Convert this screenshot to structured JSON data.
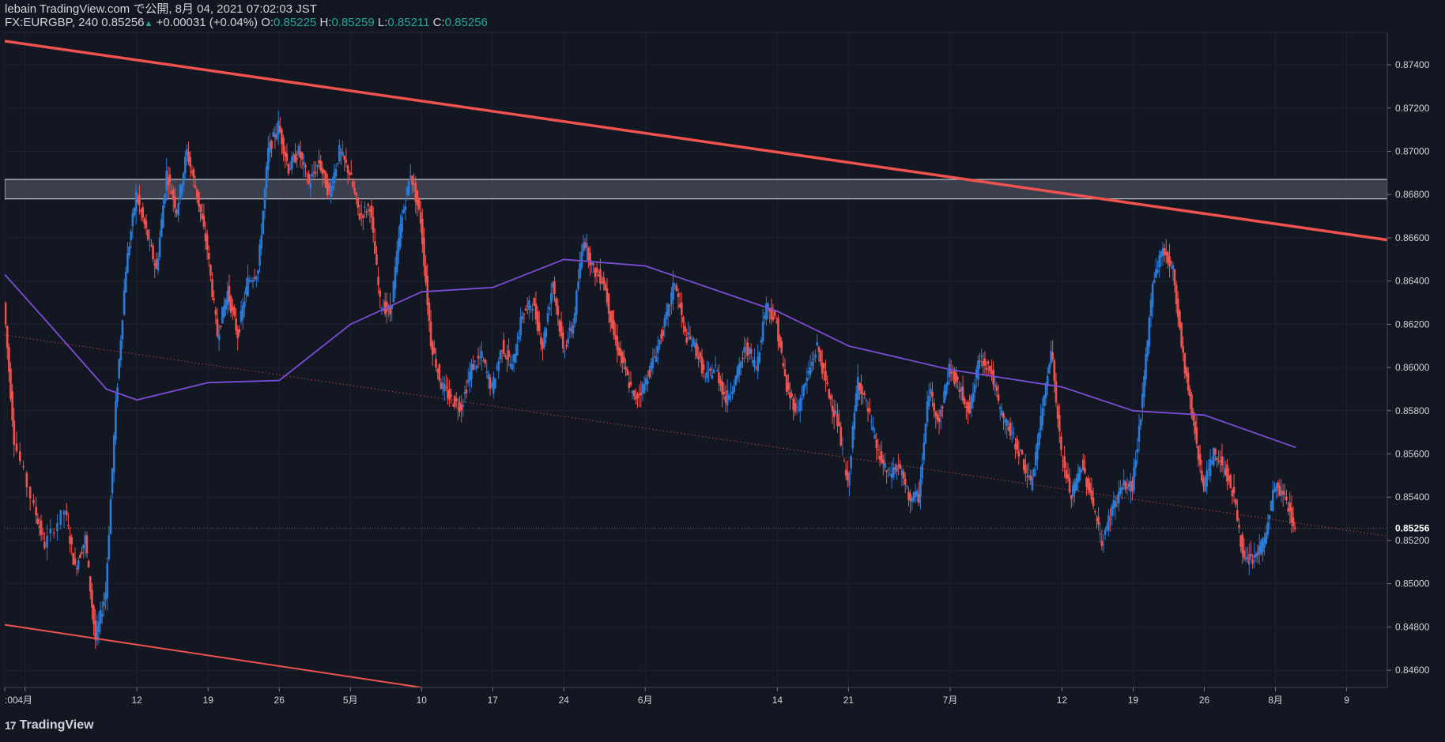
{
  "header": {
    "publisher": "lebain TradingView.com で公開, 8月 04, 2021 07:02:03 JST",
    "symbol": "FX:EURGBP, 240",
    "last": "0.85256",
    "change": "+0.00031 (+0.04%)",
    "o_label": "O:",
    "o_value": "0.85225",
    "h_label": "H:",
    "h_value": "0.85259",
    "l_label": "L:",
    "l_value": "0.85211",
    "c_label": "C:",
    "c_value": "0.85256"
  },
  "brand": {
    "icon": "tradingview-logo-icon",
    "text": "TradingView"
  },
  "colors": {
    "background": "#131722",
    "bull": "#2a7ad6",
    "bear": "#ef5350",
    "ma": "#7b4dd6",
    "trendline": "#f0524f",
    "zone_fill": "#4a4e5c",
    "grid": "#1e222d"
  },
  "chart_data": {
    "type": "candlestick",
    "symbol": "FX:EURGBP",
    "timeframe": "240",
    "price_axis": {
      "range": [
        0.8452,
        0.8755
      ],
      "ticks": [
        "0.84600",
        "0.84800",
        "0.85000",
        "0.85200",
        "0.85400",
        "0.85600",
        "0.85800",
        "0.86000",
        "0.86200",
        "0.86400",
        "0.86600",
        "0.86800",
        "0.87000",
        "0.87200",
        "0.87400"
      ],
      "last_price_label": "0.85256"
    },
    "time_axis": {
      "range": [
        "2021-03-30",
        "2021-08-13"
      ],
      "ticks": [
        {
          "label": ":00",
          "date": "2021-03-30"
        },
        {
          "label": "4月",
          "date": "2021-04-01"
        },
        {
          "label": "12",
          "date": "2021-04-12"
        },
        {
          "label": "19",
          "date": "2021-04-19"
        },
        {
          "label": "26",
          "date": "2021-04-26"
        },
        {
          "label": "5月",
          "date": "2021-05-03"
        },
        {
          "label": "10",
          "date": "2021-05-10"
        },
        {
          "label": "17",
          "date": "2021-05-17"
        },
        {
          "label": "24",
          "date": "2021-05-24"
        },
        {
          "label": "6月",
          "date": "2021-06-01"
        },
        {
          "label": "14",
          "date": "2021-06-14"
        },
        {
          "label": "21",
          "date": "2021-06-21"
        },
        {
          "label": "7月",
          "date": "2021-07-01"
        },
        {
          "label": "12",
          "date": "2021-07-12"
        },
        {
          "label": "19",
          "date": "2021-07-19"
        },
        {
          "label": "26",
          "date": "2021-07-26"
        },
        {
          "label": "8月",
          "date": "2021-08-02"
        },
        {
          "label": "9",
          "date": "2021-08-09"
        }
      ]
    },
    "close_path": [
      {
        "date": "2021-03-30",
        "price": 0.863
      },
      {
        "date": "2021-03-31",
        "price": 0.8567
      },
      {
        "date": "2021-04-02",
        "price": 0.8535
      },
      {
        "date": "2021-04-03",
        "price": 0.8518
      },
      {
        "date": "2021-04-05",
        "price": 0.8534
      },
      {
        "date": "2021-04-06",
        "price": 0.8507
      },
      {
        "date": "2021-04-07",
        "price": 0.8521
      },
      {
        "date": "2021-04-08",
        "price": 0.8474
      },
      {
        "date": "2021-04-09",
        "price": 0.8496
      },
      {
        "date": "2021-04-10",
        "price": 0.8582
      },
      {
        "date": "2021-04-11",
        "price": 0.8646
      },
      {
        "date": "2021-04-12",
        "price": 0.868
      },
      {
        "date": "2021-04-13",
        "price": 0.8663
      },
      {
        "date": "2021-04-14",
        "price": 0.8645
      },
      {
        "date": "2021-04-15",
        "price": 0.869
      },
      {
        "date": "2021-04-16",
        "price": 0.8673
      },
      {
        "date": "2021-04-17",
        "price": 0.87
      },
      {
        "date": "2021-04-18",
        "price": 0.868
      },
      {
        "date": "2021-04-19",
        "price": 0.8655
      },
      {
        "date": "2021-04-20",
        "price": 0.8615
      },
      {
        "date": "2021-04-21",
        "price": 0.8635
      },
      {
        "date": "2021-04-22",
        "price": 0.8615
      },
      {
        "date": "2021-04-23",
        "price": 0.864
      },
      {
        "date": "2021-04-24",
        "price": 0.8645
      },
      {
        "date": "2021-04-25",
        "price": 0.87
      },
      {
        "date": "2021-04-26",
        "price": 0.8712
      },
      {
        "date": "2021-04-27",
        "price": 0.8692
      },
      {
        "date": "2021-04-28",
        "price": 0.87
      },
      {
        "date": "2021-04-29",
        "price": 0.8685
      },
      {
        "date": "2021-04-30",
        "price": 0.8695
      },
      {
        "date": "2021-05-01",
        "price": 0.868
      },
      {
        "date": "2021-05-02",
        "price": 0.87
      },
      {
        "date": "2021-05-03",
        "price": 0.869
      },
      {
        "date": "2021-05-04",
        "price": 0.867
      },
      {
        "date": "2021-05-05",
        "price": 0.8675
      },
      {
        "date": "2021-05-06",
        "price": 0.863
      },
      {
        "date": "2021-05-07",
        "price": 0.8625
      },
      {
        "date": "2021-05-08",
        "price": 0.8665
      },
      {
        "date": "2021-05-09",
        "price": 0.869
      },
      {
        "date": "2021-05-10",
        "price": 0.8668
      },
      {
        "date": "2021-05-11",
        "price": 0.8612
      },
      {
        "date": "2021-05-12",
        "price": 0.8592
      },
      {
        "date": "2021-05-13",
        "price": 0.8585
      },
      {
        "date": "2021-05-14",
        "price": 0.8582
      },
      {
        "date": "2021-05-15",
        "price": 0.86
      },
      {
        "date": "2021-05-16",
        "price": 0.8605
      },
      {
        "date": "2021-05-17",
        "price": 0.859
      },
      {
        "date": "2021-05-18",
        "price": 0.861
      },
      {
        "date": "2021-05-19",
        "price": 0.86
      },
      {
        "date": "2021-05-20",
        "price": 0.8625
      },
      {
        "date": "2021-05-21",
        "price": 0.863
      },
      {
        "date": "2021-05-22",
        "price": 0.861
      },
      {
        "date": "2021-05-23",
        "price": 0.864
      },
      {
        "date": "2021-05-24",
        "price": 0.8608
      },
      {
        "date": "2021-05-25",
        "price": 0.862
      },
      {
        "date": "2021-05-26",
        "price": 0.866
      },
      {
        "date": "2021-05-27",
        "price": 0.8645
      },
      {
        "date": "2021-05-28",
        "price": 0.864
      },
      {
        "date": "2021-05-29",
        "price": 0.8615
      },
      {
        "date": "2021-05-30",
        "price": 0.86
      },
      {
        "date": "2021-05-31",
        "price": 0.8585
      },
      {
        "date": "2021-06-01",
        "price": 0.8592
      },
      {
        "date": "2021-06-02",
        "price": 0.8605
      },
      {
        "date": "2021-06-03",
        "price": 0.862
      },
      {
        "date": "2021-06-04",
        "price": 0.864
      },
      {
        "date": "2021-06-05",
        "price": 0.8615
      },
      {
        "date": "2021-06-06",
        "price": 0.861
      },
      {
        "date": "2021-06-07",
        "price": 0.8595
      },
      {
        "date": "2021-06-08",
        "price": 0.86
      },
      {
        "date": "2021-06-09",
        "price": 0.8585
      },
      {
        "date": "2021-06-10",
        "price": 0.8595
      },
      {
        "date": "2021-06-11",
        "price": 0.861
      },
      {
        "date": "2021-06-12",
        "price": 0.86
      },
      {
        "date": "2021-06-13",
        "price": 0.863
      },
      {
        "date": "2021-06-14",
        "price": 0.862
      },
      {
        "date": "2021-06-15",
        "price": 0.859
      },
      {
        "date": "2021-06-16",
        "price": 0.858
      },
      {
        "date": "2021-06-17",
        "price": 0.8595
      },
      {
        "date": "2021-06-18",
        "price": 0.861
      },
      {
        "date": "2021-06-19",
        "price": 0.859
      },
      {
        "date": "2021-06-20",
        "price": 0.8575
      },
      {
        "date": "2021-06-21",
        "price": 0.8545
      },
      {
        "date": "2021-06-22",
        "price": 0.8595
      },
      {
        "date": "2021-06-23",
        "price": 0.858
      },
      {
        "date": "2021-06-24",
        "price": 0.856
      },
      {
        "date": "2021-06-25",
        "price": 0.855
      },
      {
        "date": "2021-06-26",
        "price": 0.8555
      },
      {
        "date": "2021-06-27",
        "price": 0.854
      },
      {
        "date": "2021-06-28",
        "price": 0.854
      },
      {
        "date": "2021-06-29",
        "price": 0.859
      },
      {
        "date": "2021-06-30",
        "price": 0.8575
      },
      {
        "date": "2021-07-01",
        "price": 0.86
      },
      {
        "date": "2021-07-02",
        "price": 0.859
      },
      {
        "date": "2021-07-03",
        "price": 0.858
      },
      {
        "date": "2021-07-04",
        "price": 0.8605
      },
      {
        "date": "2021-07-05",
        "price": 0.86
      },
      {
        "date": "2021-07-06",
        "price": 0.858
      },
      {
        "date": "2021-07-07",
        "price": 0.857
      },
      {
        "date": "2021-07-08",
        "price": 0.856
      },
      {
        "date": "2021-07-09",
        "price": 0.8545
      },
      {
        "date": "2021-07-10",
        "price": 0.8575
      },
      {
        "date": "2021-07-11",
        "price": 0.861
      },
      {
        "date": "2021-07-12",
        "price": 0.856
      },
      {
        "date": "2021-07-13",
        "price": 0.854
      },
      {
        "date": "2021-07-14",
        "price": 0.8555
      },
      {
        "date": "2021-07-15",
        "price": 0.854
      },
      {
        "date": "2021-07-16",
        "price": 0.8518
      },
      {
        "date": "2021-07-17",
        "price": 0.8535
      },
      {
        "date": "2021-07-18",
        "price": 0.8545
      },
      {
        "date": "2021-07-19",
        "price": 0.8545
      },
      {
        "date": "2021-07-20",
        "price": 0.8585
      },
      {
        "date": "2021-07-21",
        "price": 0.864
      },
      {
        "date": "2021-07-22",
        "price": 0.8655
      },
      {
        "date": "2021-07-23",
        "price": 0.8645
      },
      {
        "date": "2021-07-24",
        "price": 0.8605
      },
      {
        "date": "2021-07-25",
        "price": 0.8575
      },
      {
        "date": "2021-07-26",
        "price": 0.8545
      },
      {
        "date": "2021-07-27",
        "price": 0.856
      },
      {
        "date": "2021-07-28",
        "price": 0.8555
      },
      {
        "date": "2021-07-29",
        "price": 0.854
      },
      {
        "date": "2021-07-30",
        "price": 0.851
      },
      {
        "date": "2021-07-31",
        "price": 0.8512
      },
      {
        "date": "2021-08-01",
        "price": 0.852
      },
      {
        "date": "2021-08-02",
        "price": 0.8545
      },
      {
        "date": "2021-08-03",
        "price": 0.854
      },
      {
        "date": "2021-08-04",
        "price": 0.8526
      }
    ],
    "moving_average": [
      {
        "date": "2021-03-30",
        "price": 0.8643
      },
      {
        "date": "2021-04-03",
        "price": 0.8622
      },
      {
        "date": "2021-04-09",
        "price": 0.859
      },
      {
        "date": "2021-04-12",
        "price": 0.8585
      },
      {
        "date": "2021-04-19",
        "price": 0.8593
      },
      {
        "date": "2021-04-26",
        "price": 0.8594
      },
      {
        "date": "2021-05-03",
        "price": 0.862
      },
      {
        "date": "2021-05-10",
        "price": 0.8635
      },
      {
        "date": "2021-05-17",
        "price": 0.8637
      },
      {
        "date": "2021-05-24",
        "price": 0.865
      },
      {
        "date": "2021-06-01",
        "price": 0.8647
      },
      {
        "date": "2021-06-14",
        "price": 0.8626
      },
      {
        "date": "2021-06-21",
        "price": 0.861
      },
      {
        "date": "2021-07-01",
        "price": 0.8599
      },
      {
        "date": "2021-07-12",
        "price": 0.8591
      },
      {
        "date": "2021-07-19",
        "price": 0.858
      },
      {
        "date": "2021-07-26",
        "price": 0.8578
      },
      {
        "date": "2021-08-04",
        "price": 0.8563
      }
    ],
    "trendlines": [
      {
        "name": "upper-trendline",
        "style": "solid",
        "from": {
          "date": "2021-03-30",
          "price": 0.8751
        },
        "to": {
          "date": "2021-08-13",
          "price": 0.8659
        }
      },
      {
        "name": "lower-trendline",
        "style": "solid",
        "from": {
          "date": "2021-03-30",
          "price": 0.8481
        },
        "to": {
          "date": "2021-05-10",
          "price": 0.8452
        }
      },
      {
        "name": "mid-trendline",
        "style": "dotted",
        "from": {
          "date": "2021-03-30",
          "price": 0.8615
        },
        "to": {
          "date": "2021-08-13",
          "price": 0.8522
        }
      }
    ],
    "zone": {
      "from_price": 0.8678,
      "to_price": 0.8687
    }
  }
}
